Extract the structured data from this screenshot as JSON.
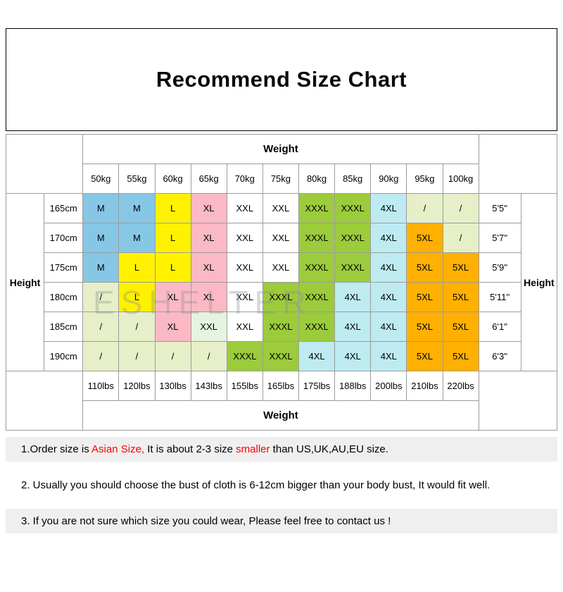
{
  "watermark": "ESHELTER",
  "palette": {
    "blue": "#87C7E6",
    "yellow": "#FFF100",
    "pink": "#FBB9C6",
    "white": "#FFFFFF",
    "mint": "#E5F3E0",
    "green": "#9CCB3B",
    "cyan": "#BDEBF1",
    "orange": "#FFB000",
    "pale": "#E6EFC8"
  },
  "chart_data": {
    "type": "table",
    "title": "Recommend Size Chart",
    "col_header_label": "Weight",
    "row_header_label": "Height",
    "columns_kg": [
      "50kg",
      "55kg",
      "60kg",
      "65kg",
      "70kg",
      "75kg",
      "80kg",
      "85kg",
      "90kg",
      "95kg",
      "100kg"
    ],
    "columns_lbs": [
      "110lbs",
      "120lbs",
      "130lbs",
      "143lbs",
      "155lbs",
      "165lbs",
      "175lbs",
      "188lbs",
      "200lbs",
      "210lbs",
      "220lbs"
    ],
    "rows_cm": [
      "165cm",
      "170cm",
      "175cm",
      "180cm",
      "185cm",
      "190cm"
    ],
    "rows_ft": [
      "5'5''",
      "5'7''",
      "5'9''",
      "5'11''",
      "6'1''",
      "6'3''"
    ],
    "matrix": [
      [
        "M",
        "M",
        "L",
        "XL",
        "XXL",
        "XXL",
        "XXXL",
        "XXXL",
        "4XL",
        "/",
        "/"
      ],
      [
        "M",
        "M",
        "L",
        "XL",
        "XXL",
        "XXL",
        "XXXL",
        "XXXL",
        "4XL",
        "5XL",
        "/"
      ],
      [
        "M",
        "L",
        "L",
        "XL",
        "XXL",
        "XXL",
        "XXXL",
        "XXXL",
        "4XL",
        "5XL",
        "5XL"
      ],
      [
        "/",
        "L",
        "XL",
        "XL",
        "XXL",
        "XXXL",
        "XXXL",
        "4XL",
        "4XL",
        "5XL",
        "5XL"
      ],
      [
        "/",
        "/",
        "XL",
        "XXL",
        "XXL",
        "XXXL",
        "XXXL",
        "4XL",
        "4XL",
        "5XL",
        "5XL"
      ],
      [
        "/",
        "/",
        "/",
        "/",
        "XXXL",
        "XXXL",
        "4XL",
        "4XL",
        "4XL",
        "5XL",
        "5XL"
      ]
    ],
    "cell_colors": [
      [
        "blue",
        "blue",
        "yellow",
        "pink",
        "white",
        "white",
        "green",
        "green",
        "cyan",
        "pale",
        "pale"
      ],
      [
        "blue",
        "blue",
        "yellow",
        "pink",
        "white",
        "white",
        "green",
        "green",
        "cyan",
        "orange",
        "pale"
      ],
      [
        "blue",
        "yellow",
        "yellow",
        "pink",
        "white",
        "white",
        "green",
        "green",
        "cyan",
        "orange",
        "orange"
      ],
      [
        "pale",
        "yellow",
        "pink",
        "pink",
        "white",
        "green",
        "green",
        "cyan",
        "cyan",
        "orange",
        "orange"
      ],
      [
        "pale",
        "pale",
        "pink",
        "mint",
        "white",
        "green",
        "green",
        "cyan",
        "cyan",
        "orange",
        "orange"
      ],
      [
        "pale",
        "pale",
        "pale",
        "pale",
        "green",
        "green",
        "cyan",
        "cyan",
        "cyan",
        "orange",
        "orange"
      ]
    ]
  },
  "notes": {
    "n1": {
      "p1": "1.Order size is ",
      "red1": "Asian Size,",
      "p2": " It is about 2-3 size ",
      "red2": "smaller",
      "p3": " than US,UK,AU,EU size."
    },
    "n2": {
      "text": "2. Usually you should choose the bust of cloth is 6-12cm bigger than your body bust, It would fit well."
    },
    "n3": {
      "text": "3. If you are not sure which size you could wear, Please feel free to contact us !"
    }
  }
}
